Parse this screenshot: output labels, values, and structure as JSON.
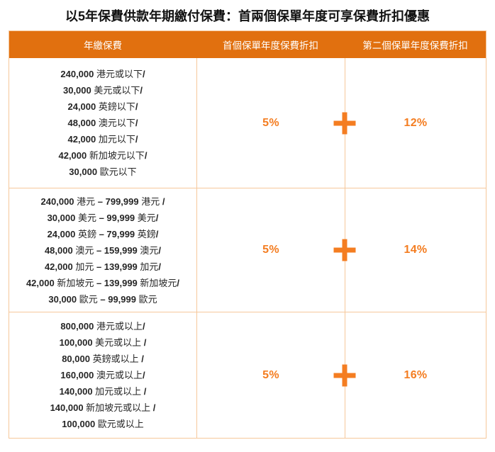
{
  "title": "以5年保費供款年期繳付保費：首兩個保單年度可享保費折扣優惠",
  "colors": {
    "header_bg": "#E1700F",
    "accent": "#F47D21",
    "border": "#F6C89B",
    "text": "#262626"
  },
  "table": {
    "headers": [
      "年繳保費",
      "首個保單年度保費折扣",
      "第二個保單年度保費折扣"
    ],
    "rows": [
      {
        "premium_lines": [
          [
            {
              "t": "240,000",
              "b": true
            },
            {
              "t": " 港元或以下",
              "b": false
            },
            {
              "t": "/",
              "b": true
            }
          ],
          [
            {
              "t": "30,000",
              "b": true
            },
            {
              "t": " 美元或以下",
              "b": false
            },
            {
              "t": "/",
              "b": true
            }
          ],
          [
            {
              "t": "24,000",
              "b": true
            },
            {
              "t": " 英鎊以下",
              "b": false
            },
            {
              "t": "/",
              "b": true
            }
          ],
          [
            {
              "t": "48,000",
              "b": true
            },
            {
              "t": " 澳元以下",
              "b": false
            },
            {
              "t": "/",
              "b": true
            }
          ],
          [
            {
              "t": "42,000",
              "b": true
            },
            {
              "t": " 加元以下",
              "b": false
            },
            {
              "t": "/",
              "b": true
            }
          ],
          [
            {
              "t": "42,000",
              "b": true
            },
            {
              "t": " 新加坡元以下",
              "b": false
            },
            {
              "t": "/",
              "b": true
            }
          ],
          [
            {
              "t": "30,000",
              "b": true
            },
            {
              "t": " 歐元以下",
              "b": false
            }
          ]
        ],
        "first_year_discount": "5%",
        "operator": "+",
        "second_year_discount": "12%"
      },
      {
        "premium_lines": [
          [
            {
              "t": "240,000",
              "b": true
            },
            {
              "t": " 港元 ",
              "b": false
            },
            {
              "t": "– 799,999",
              "b": true
            },
            {
              "t": " 港元 ",
              "b": false
            },
            {
              "t": "/",
              "b": true
            }
          ],
          [
            {
              "t": "30,000",
              "b": true
            },
            {
              "t": " 美元 ",
              "b": false
            },
            {
              "t": "– 99,999",
              "b": true
            },
            {
              "t": " 美元",
              "b": false
            },
            {
              "t": "/",
              "b": true
            }
          ],
          [
            {
              "t": "24,000",
              "b": true
            },
            {
              "t": " 英鎊 ",
              "b": false
            },
            {
              "t": "– 79,999",
              "b": true
            },
            {
              "t": " 英鎊",
              "b": false
            },
            {
              "t": "/",
              "b": true
            }
          ],
          [
            {
              "t": "48,000",
              "b": true
            },
            {
              "t": " 澳元 ",
              "b": false
            },
            {
              "t": "– 159,999",
              "b": true
            },
            {
              "t": " 澳元",
              "b": false
            },
            {
              "t": "/",
              "b": true
            }
          ],
          [
            {
              "t": "42,000",
              "b": true
            },
            {
              "t": " 加元 ",
              "b": false
            },
            {
              "t": "– 139,999",
              "b": true
            },
            {
              "t": " 加元",
              "b": false
            },
            {
              "t": "/",
              "b": true
            }
          ],
          [
            {
              "t": "42,000",
              "b": true
            },
            {
              "t": " 新加坡元 ",
              "b": false
            },
            {
              "t": "– 139,999",
              "b": true
            },
            {
              "t": " 新加坡元",
              "b": false
            },
            {
              "t": "/",
              "b": true
            }
          ],
          [
            {
              "t": "30,000",
              "b": true
            },
            {
              "t": " 歐元 ",
              "b": false
            },
            {
              "t": "– 99,999",
              "b": true
            },
            {
              "t": " 歐元",
              "b": false
            }
          ]
        ],
        "first_year_discount": "5%",
        "operator": "+",
        "second_year_discount": "14%"
      },
      {
        "premium_lines": [
          [
            {
              "t": "800,000",
              "b": true
            },
            {
              "t": " 港元或以上",
              "b": false
            },
            {
              "t": "/",
              "b": true
            }
          ],
          [
            {
              "t": "100,000",
              "b": true
            },
            {
              "t": " 美元或以上 ",
              "b": false
            },
            {
              "t": "/",
              "b": true
            }
          ],
          [
            {
              "t": "80,000",
              "b": true
            },
            {
              "t": " 英鎊或以上 ",
              "b": false
            },
            {
              "t": "/",
              "b": true
            }
          ],
          [
            {
              "t": "160,000",
              "b": true
            },
            {
              "t": " 澳元或以上",
              "b": false
            },
            {
              "t": "/",
              "b": true
            }
          ],
          [
            {
              "t": "140,000",
              "b": true
            },
            {
              "t": " 加元或以上 ",
              "b": false
            },
            {
              "t": "/",
              "b": true
            }
          ],
          [
            {
              "t": "140,000",
              "b": true
            },
            {
              "t": " 新加坡元或以上 ",
              "b": false
            },
            {
              "t": "/",
              "b": true
            }
          ],
          [
            {
              "t": "100,000",
              "b": true
            },
            {
              "t": " 歐元或以上",
              "b": false
            }
          ]
        ],
        "first_year_discount": "5%",
        "operator": "+",
        "second_year_discount": "16%"
      }
    ]
  }
}
